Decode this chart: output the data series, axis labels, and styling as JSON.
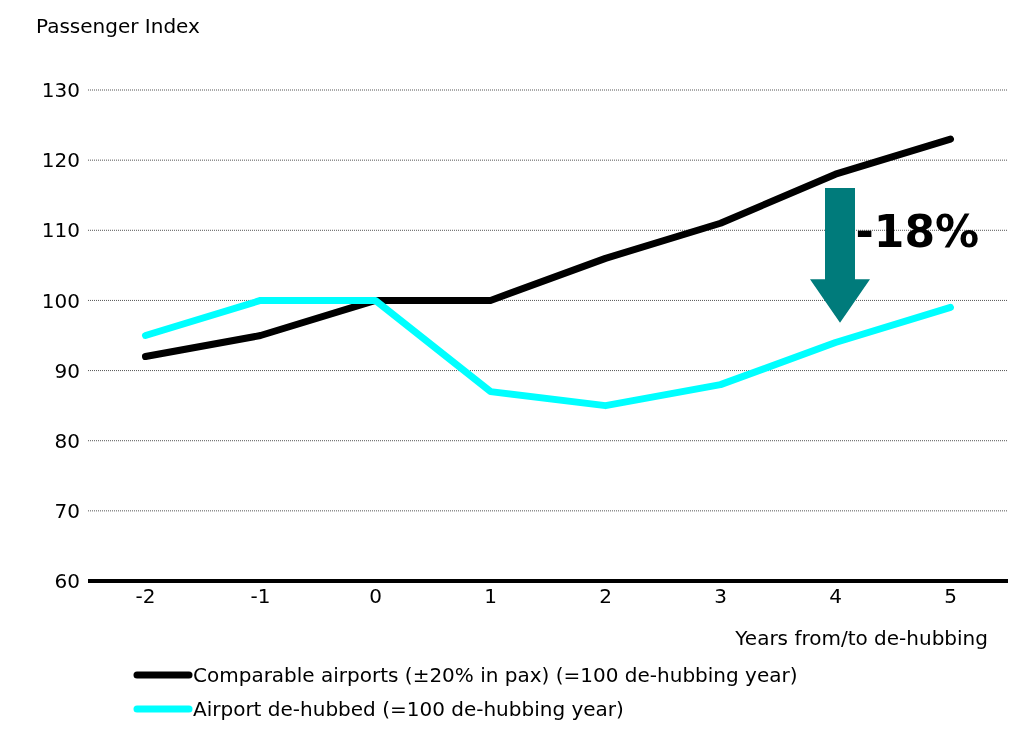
{
  "chart_data": {
    "type": "line",
    "ylabel": "Passenger Index",
    "xlabel": "Years from/to de-hubbing",
    "categories": [
      "-2",
      "-1",
      "0",
      "1",
      "2",
      "3",
      "4",
      "5"
    ],
    "series": [
      {
        "name": "Comparable airports (±20% in pax) (=100 de-hubbing year)",
        "color": "#000000",
        "values": [
          92,
          95,
          100,
          100,
          106,
          111,
          118,
          123
        ]
      },
      {
        "name": "Airport de-hubbed (=100 de-hubbing year)",
        "color": "#00ffff",
        "values": [
          95,
          100,
          100,
          87,
          85,
          88,
          94,
          99
        ]
      }
    ],
    "ylim": [
      60,
      130
    ],
    "yticks": [
      60,
      70,
      80,
      90,
      100,
      110,
      120,
      130
    ],
    "grid": "y",
    "legend": "bottom",
    "marker": "none",
    "line_style": "solid",
    "annotations": [
      "-18%"
    ]
  }
}
